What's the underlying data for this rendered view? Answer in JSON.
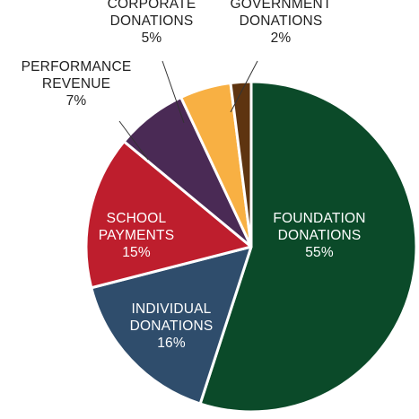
{
  "chart_data": {
    "type": "pie",
    "start_angle_deg": 0,
    "direction": "clockwise",
    "slices": [
      {
        "label_lines": [
          "FOUNDATION",
          "DONATIONS"
        ],
        "pct_label": "55%",
        "value": 55,
        "color": "#0b4a29",
        "label_position": "inside"
      },
      {
        "label_lines": [
          "INDIVIDUAL",
          "DONATIONS"
        ],
        "pct_label": "16%",
        "value": 16,
        "color": "#2f4d6c",
        "label_position": "inside"
      },
      {
        "label_lines": [
          "SCHOOL",
          "PAYMENTS"
        ],
        "pct_label": "15%",
        "value": 15,
        "color": "#be1e2d",
        "label_position": "inside"
      },
      {
        "label_lines": [
          "PERFORMANCE",
          "REVENUE"
        ],
        "pct_label": "7%",
        "value": 7,
        "color": "#4a2a55",
        "label_position": "outside"
      },
      {
        "label_lines": [
          "CORPORATE",
          "DONATIONS"
        ],
        "pct_label": "5%",
        "value": 5,
        "color": "#f8b043",
        "label_position": "outside"
      },
      {
        "label_lines": [
          "GOVERNMENT",
          "DONATIONS"
        ],
        "pct_label": "2%",
        "value": 2,
        "color": "#5e3410",
        "label_position": "outside"
      }
    ]
  }
}
